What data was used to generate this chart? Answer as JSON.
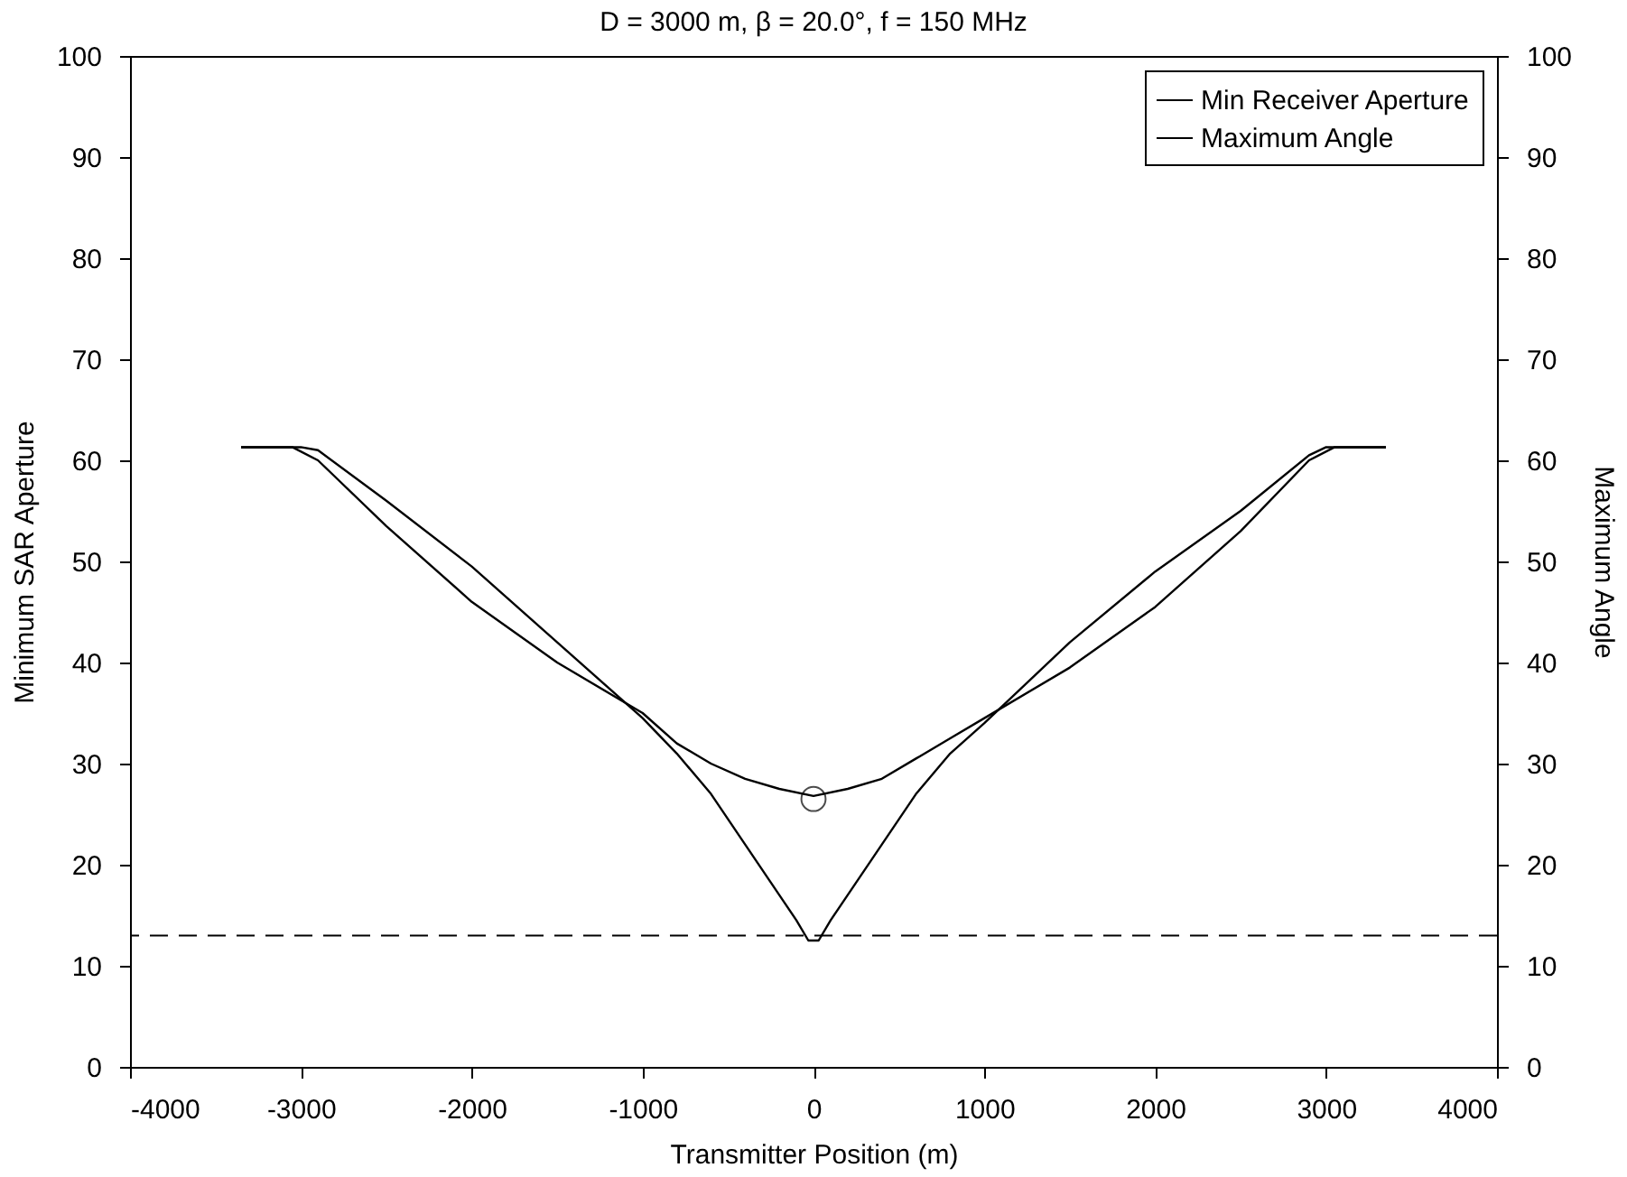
{
  "chart_data": {
    "type": "line",
    "title": "D = 3000 m, β = 20.0°, f = 150 MHz",
    "xlabel": "Transmitter Position (m)",
    "ylabel": "Minimum SAR Aperture",
    "y2label": "Maximum Angle",
    "xlim": [
      -4000,
      4000
    ],
    "xticks": [
      -4000,
      -3000,
      -2000,
      -1000,
      0,
      1000,
      2000,
      3000,
      4000
    ],
    "ylim": [
      0,
      100
    ],
    "yticks": [
      0,
      10,
      20,
      30,
      40,
      50,
      60,
      70,
      80,
      90,
      100
    ],
    "y2lim": [
      0,
      100
    ],
    "y2ticks": [
      0,
      10,
      20,
      30,
      40,
      50,
      60,
      70,
      80,
      90,
      100
    ],
    "grid": false,
    "legend": "top right",
    "line_style": "solid",
    "series": [
      {
        "name": "Min Receiver Aperture",
        "color": "#000000",
        "x": [
          -3350,
          -3000,
          -2900,
          -2500,
          -2000,
          -1500,
          -1000,
          -800,
          -600,
          -400,
          -200,
          -100,
          -30,
          30,
          100,
          200,
          400,
          600,
          800,
          1000,
          1500,
          2000,
          2500,
          2900,
          3000,
          3350
        ],
        "values": [
          61.3,
          61.3,
          61.0,
          56,
          49.5,
          42,
          34.5,
          31,
          27,
          22,
          17,
          14.5,
          12.5,
          12.5,
          14.5,
          17,
          22,
          27,
          31,
          34,
          42,
          49,
          55,
          60.5,
          61.3,
          61.3
        ]
      },
      {
        "name": "Maximum Angle",
        "color": "#000000",
        "axis": "y2",
        "x": [
          -3350,
          -3050,
          -2900,
          -2500,
          -2000,
          -1500,
          -1000,
          -800,
          -600,
          -400,
          -200,
          0,
          200,
          400,
          600,
          800,
          1000,
          1500,
          2000,
          2500,
          2900,
          3050,
          3350
        ],
        "values": [
          61.3,
          61.3,
          60,
          53.5,
          46,
          40,
          35,
          32,
          30,
          28.5,
          27.5,
          26.8,
          27.5,
          28.5,
          30.5,
          32.5,
          34.5,
          39.5,
          45.5,
          53,
          60,
          61.3,
          61.3
        ]
      },
      {
        "type": "scatter",
        "marker": "circle",
        "color": "#000000",
        "x": [
          0
        ],
        "values": [
          26.5
        ]
      }
    ],
    "ref_lines": [
      {
        "axis": "y",
        "value": 13,
        "line_style": "dashed",
        "color": "#000000"
      }
    ]
  }
}
